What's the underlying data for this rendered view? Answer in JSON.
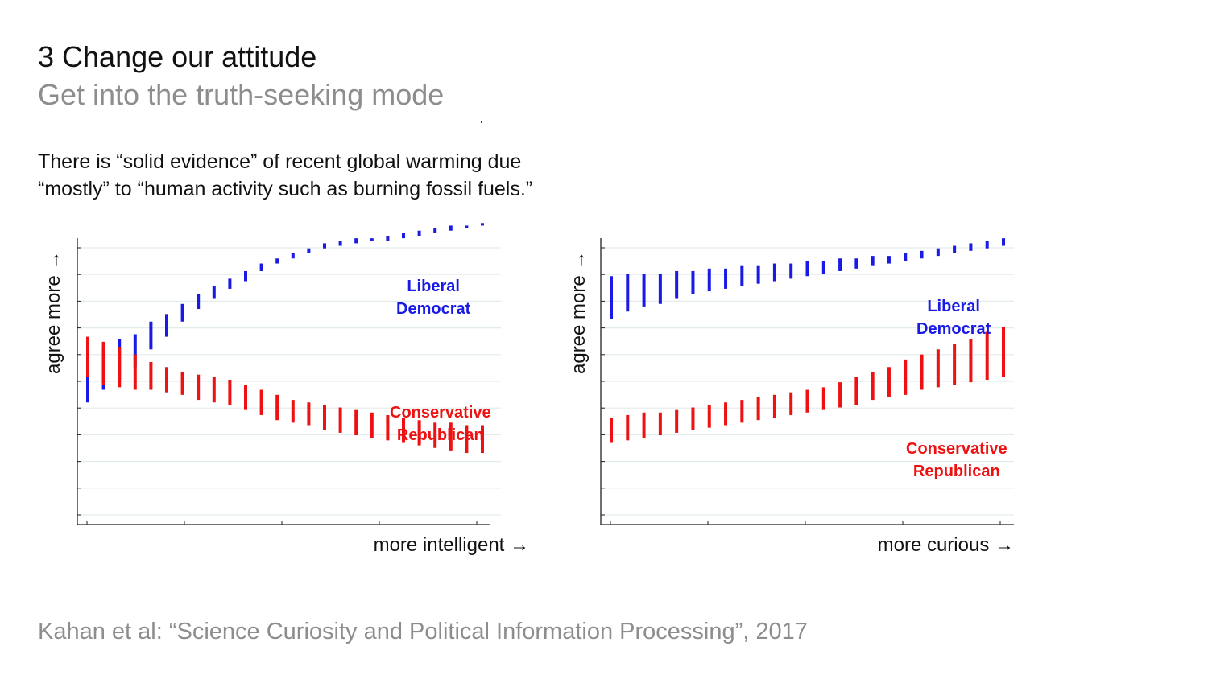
{
  "slide": {
    "title": "3 Change our attitude",
    "subtitle": "Get into the truth-seeking mode",
    "statement_line1": "There is “solid evidence” of recent global warming due",
    "statement_line2": "“mostly” to “human activity such as burning fossil fuels.”",
    "citation": "Kahan et al: “Science Curiosity and Political Information Processing”, 2017"
  },
  "colors": {
    "liberal": "#1a1ae6",
    "conservative": "#ee1111",
    "grid": "#e3ecec",
    "axis": "#222222"
  },
  "chart_data": [
    {
      "type": "error-bar",
      "xlabel": "more intelligent →",
      "ylabel": "agree more →",
      "grid": true,
      "ylim": [
        0,
        10
      ],
      "series": [
        {
          "name_line1": "Liberal",
          "name_line2": "Democrat",
          "color": "#1a1ae6",
          "low": [
            3.4,
            3.9,
            4.3,
            4.8,
            5.5,
            6.0,
            6.6,
            7.1,
            7.5,
            7.9,
            8.2,
            8.6,
            8.9,
            9.1,
            9.3,
            9.5,
            9.6,
            9.7,
            9.8,
            9.8,
            9.9,
            10.0,
            10.1,
            10.2,
            10.3,
            10.4
          ],
          "high": [
            5.2,
            5.6,
            5.9,
            6.1,
            6.6,
            6.9,
            7.3,
            7.7,
            8.0,
            8.3,
            8.6,
            8.9,
            9.1,
            9.3,
            9.5,
            9.7,
            9.8,
            9.9,
            9.9,
            10.0,
            10.1,
            10.2,
            10.3,
            10.4,
            10.4,
            10.5
          ]
        },
        {
          "name_line1": "Conservative",
          "name_line2": "Republican",
          "color": "#ee1111",
          "low": [
            4.4,
            4.1,
            4.0,
            3.9,
            3.9,
            3.8,
            3.7,
            3.5,
            3.4,
            3.3,
            3.1,
            2.9,
            2.7,
            2.6,
            2.5,
            2.3,
            2.2,
            2.1,
            2.0,
            1.9,
            1.8,
            1.7,
            1.6,
            1.5,
            1.4,
            1.4
          ],
          "high": [
            6.0,
            5.8,
            5.6,
            5.3,
            5.0,
            4.8,
            4.6,
            4.5,
            4.4,
            4.3,
            4.1,
            3.9,
            3.7,
            3.5,
            3.4,
            3.3,
            3.2,
            3.1,
            3.0,
            2.9,
            2.8,
            2.7,
            2.6,
            2.6,
            2.5,
            2.5
          ]
        }
      ]
    },
    {
      "type": "error-bar",
      "xlabel": "more curious →",
      "ylabel": "agree more →",
      "grid": true,
      "ylim": [
        0,
        10
      ],
      "series": [
        {
          "name_line1": "Liberal",
          "name_line2": "Democrat",
          "color": "#1a1ae6",
          "low": [
            6.7,
            7.0,
            7.2,
            7.3,
            7.5,
            7.7,
            7.8,
            7.9,
            8.0,
            8.1,
            8.2,
            8.3,
            8.4,
            8.5,
            8.6,
            8.7,
            8.8,
            8.9,
            9.0,
            9.1,
            9.2,
            9.3,
            9.4,
            9.5,
            9.6
          ],
          "high": [
            8.4,
            8.5,
            8.5,
            8.5,
            8.6,
            8.6,
            8.7,
            8.7,
            8.8,
            8.8,
            8.9,
            8.9,
            9.0,
            9.0,
            9.1,
            9.1,
            9.2,
            9.2,
            9.3,
            9.4,
            9.5,
            9.6,
            9.7,
            9.8,
            9.9
          ]
        },
        {
          "name_line1": "Conservative",
          "name_line2": "Republican",
          "color": "#ee1111",
          "low": [
            1.8,
            1.9,
            2.0,
            2.1,
            2.2,
            2.3,
            2.4,
            2.5,
            2.6,
            2.7,
            2.8,
            2.9,
            3.0,
            3.1,
            3.2,
            3.3,
            3.5,
            3.6,
            3.7,
            3.9,
            4.0,
            4.1,
            4.2,
            4.3,
            4.4
          ],
          "high": [
            2.8,
            2.9,
            3.0,
            3.0,
            3.1,
            3.2,
            3.3,
            3.4,
            3.5,
            3.6,
            3.7,
            3.8,
            3.9,
            4.0,
            4.2,
            4.4,
            4.6,
            4.8,
            5.1,
            5.3,
            5.5,
            5.7,
            5.9,
            6.2,
            6.4
          ]
        }
      ]
    }
  ]
}
